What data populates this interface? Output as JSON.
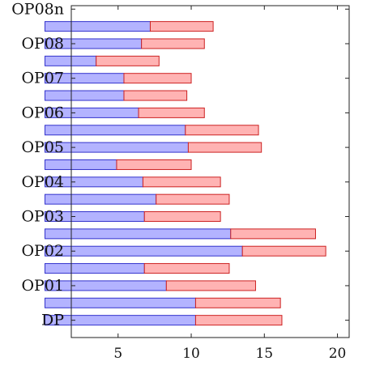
{
  "chart_data": {
    "type": "bar",
    "orientation": "horizontal",
    "stacked": true,
    "title": "",
    "xlabel": "",
    "ylabel": "",
    "xlim": [
      1.8,
      20.8
    ],
    "x_ticks": [
      5,
      10,
      15,
      20
    ],
    "y_tick_labels": [
      "DP",
      "OP01",
      "OP02",
      "OP03",
      "OP04",
      "OP05",
      "OP06",
      "OP07",
      "OP08",
      "OP08n"
    ],
    "y_tick_positions": [
      0,
      2,
      4,
      6,
      8,
      10,
      12,
      14,
      16,
      18
    ],
    "ylim": [
      -1,
      18.2
    ],
    "grid": false,
    "legend": "none",
    "bar_positions": [
      0,
      1,
      2,
      3,
      4,
      5,
      6,
      7,
      8,
      9,
      10,
      11,
      12,
      13,
      14,
      15,
      16,
      17
    ],
    "series": [
      {
        "color": "#b3b3ff",
        "edge_color": "#3333cc",
        "values": [
          10.3,
          10.3,
          8.3,
          6.8,
          13.5,
          12.7,
          6.8,
          7.6,
          6.7,
          4.9,
          9.8,
          9.6,
          6.4,
          5.4,
          5.4,
          3.5,
          6.6,
          7.2
        ]
      },
      {
        "color": "#ffb3b3",
        "edge_color": "#cc2222",
        "values": [
          5.9,
          5.8,
          6.1,
          5.8,
          5.7,
          5.8,
          5.2,
          5.0,
          5.3,
          5.1,
          5.0,
          5.0,
          4.5,
          4.3,
          4.6,
          4.3,
          4.3,
          4.3
        ]
      }
    ]
  }
}
